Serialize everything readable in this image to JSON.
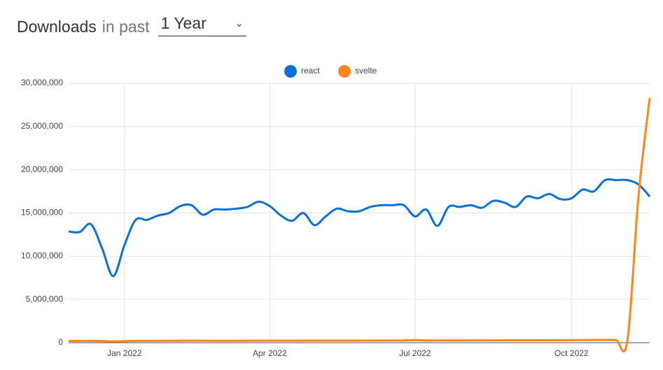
{
  "controls": {
    "title": "Downloads",
    "subtitle": "in past",
    "range": "1 Year"
  },
  "chart_data": {
    "type": "line",
    "categories": [
      null,
      null,
      null,
      null,
      null,
      "Jan 2022",
      null,
      null,
      null,
      null,
      null,
      null,
      null,
      null,
      null,
      null,
      null,
      null,
      "Apr 2022",
      null,
      null,
      null,
      null,
      null,
      null,
      null,
      null,
      null,
      null,
      null,
      null,
      "Jul 2022",
      null,
      null,
      null,
      null,
      null,
      null,
      null,
      null,
      null,
      null,
      null,
      null,
      null,
      "Oct 2022",
      null,
      null,
      null,
      null,
      null,
      null,
      null
    ],
    "series": [
      {
        "name": "react",
        "color": "#0c70d6",
        "values": [
          12860000,
          12800000,
          13700000,
          10900000,
          7700000,
          11300000,
          14200000,
          14200000,
          14700000,
          15000000,
          15800000,
          15900000,
          14800000,
          15400000,
          15400000,
          15500000,
          15700000,
          16300000,
          15800000,
          14700000,
          14100000,
          15000000,
          13600000,
          14600000,
          15500000,
          15200000,
          15200000,
          15700000,
          15900000,
          15900000,
          15900000,
          14600000,
          15400000,
          13500000,
          15700000,
          15700000,
          15900000,
          15600000,
          16400000,
          16200000,
          15700000,
          16900000,
          16700000,
          17200000,
          16600000,
          16700000,
          17700000,
          17500000,
          18800000,
          18800000,
          18800000,
          18300000,
          16900000
        ]
      },
      {
        "name": "svelte",
        "color": "#ff8618",
        "values": [
          200000,
          200000,
          210000,
          190000,
          150000,
          180000,
          210000,
          210000,
          220000,
          220000,
          230000,
          230000,
          230000,
          220000,
          220000,
          220000,
          230000,
          230000,
          240000,
          230000,
          230000,
          240000,
          240000,
          240000,
          240000,
          240000,
          240000,
          250000,
          250000,
          250000,
          260000,
          300000,
          260000,
          260000,
          260000,
          260000,
          270000,
          270000,
          270000,
          280000,
          280000,
          280000,
          280000,
          290000,
          290000,
          300000,
          310000,
          320000,
          320000,
          300000,
          200000,
          17000000,
          28300000
        ]
      }
    ],
    "ylim": [
      0,
      30000000
    ],
    "yticks": [
      {
        "value": 0,
        "label": "0"
      },
      {
        "value": 5000000,
        "label": "5,000,000"
      },
      {
        "value": 10000000,
        "label": "10,000,000"
      },
      {
        "value": 15000000,
        "label": "15,000,000"
      },
      {
        "value": 20000000,
        "label": "20,000,000"
      },
      {
        "value": 25000000,
        "label": "25,000,000"
      },
      {
        "value": 30000000,
        "label": "30,000,000"
      }
    ],
    "grid": true,
    "legend": "top"
  }
}
